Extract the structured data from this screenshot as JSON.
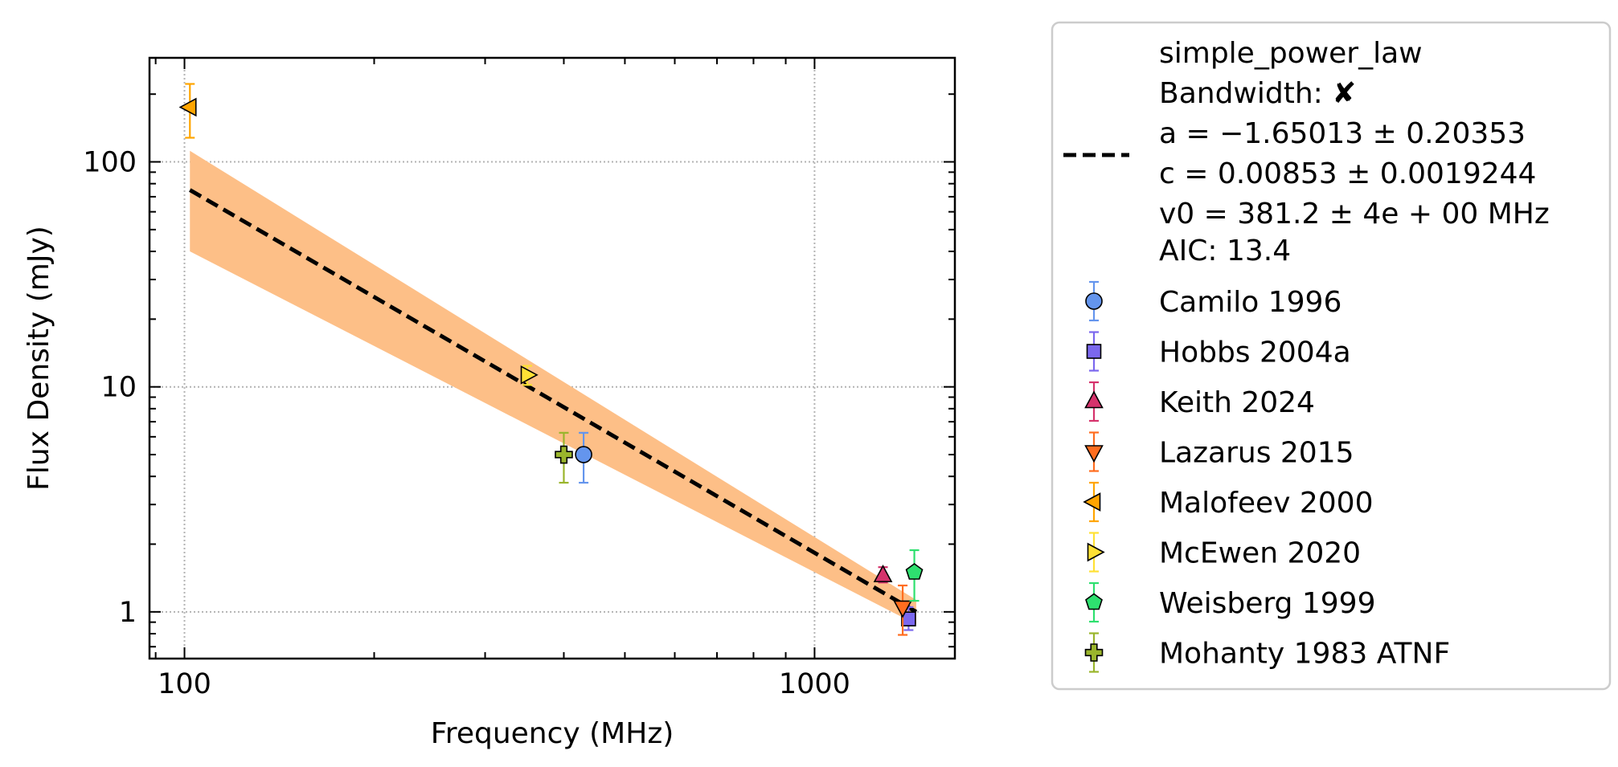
{
  "chart_data": {
    "type": "scatter",
    "xlabel": "Frequency (MHz)",
    "ylabel": "Flux Density (mJy)",
    "x_scale": "log",
    "y_scale": "log",
    "xlim": [
      88,
      1670
    ],
    "ylim": [
      0.62,
      290
    ],
    "grid": true,
    "grid_style": "dotted",
    "legend_placement": "outside-right",
    "x_ticks": [
      {
        "value": 100,
        "label": "100"
      },
      {
        "value": 1000,
        "label": "1000"
      }
    ],
    "y_ticks": [
      {
        "value": 1,
        "label": "1"
      },
      {
        "value": 10,
        "label": "10"
      },
      {
        "value": 100,
        "label": "100"
      }
    ],
    "fit": {
      "model": "simple_power_law",
      "bandwidth_label": "Bandwidth:",
      "bandwidth_symbol": "✘",
      "param_a": "a = −1.65013 ± 0.20353",
      "param_c": "c = 0.00853 ± 0.0019244",
      "param_v0": "v0 = 381.2 ± 4e + 00 MHz",
      "aic": "AIC: 13.4",
      "line_color": "#000000",
      "band_color": "#fdbf87",
      "x": [
        102,
        1450
      ],
      "y": [
        75,
        1.0
      ],
      "band_lower": [
        40,
        0.88
      ],
      "band_upper": [
        112,
        1.13
      ]
    },
    "series": [
      {
        "name": "Camilo 1996",
        "marker": "circle",
        "color": "#6495ed",
        "points": [
          {
            "x": 430,
            "y": 5.0,
            "yerr_low": 3.75,
            "yerr_high": 6.25
          }
        ]
      },
      {
        "name": "Hobbs 2004a",
        "marker": "square",
        "color": "#7b68ee",
        "points": [
          {
            "x": 1410,
            "y": 0.93,
            "yerr_low": 0.83,
            "yerr_high": 1.05
          }
        ]
      },
      {
        "name": "Keith 2024",
        "marker": "triangle-up",
        "color": "#d6336c",
        "points": [
          {
            "x": 1284,
            "y": 1.45,
            "yerr_low": 1.35,
            "yerr_high": 1.58
          }
        ]
      },
      {
        "name": "Lazarus 2015",
        "marker": "triangle-down",
        "color": "#ff6d1f",
        "points": [
          {
            "x": 1380,
            "y": 1.05,
            "yerr_low": 0.79,
            "yerr_high": 1.31
          }
        ]
      },
      {
        "name": "Malofeev 2000",
        "marker": "triangle-left",
        "color": "#ffa500",
        "points": [
          {
            "x": 102,
            "y": 175,
            "yerr_low": 128,
            "yerr_high": 222
          }
        ]
      },
      {
        "name": "McEwen 2020",
        "marker": "triangle-right",
        "color": "#ffe135",
        "points": [
          {
            "x": 350,
            "y": 11.3,
            "yerr_low": 10.2,
            "yerr_high": 12.4
          }
        ]
      },
      {
        "name": "Weisberg 1999",
        "marker": "pentagon",
        "color": "#2ee06f",
        "points": [
          {
            "x": 1440,
            "y": 1.5,
            "yerr_low": 1.12,
            "yerr_high": 1.88
          }
        ]
      },
      {
        "name": "Mohanty 1983 ATNF",
        "marker": "plus",
        "color": "#9ab52c",
        "points": [
          {
            "x": 400,
            "y": 5.0,
            "yerr_low": 3.75,
            "yerr_high": 6.25
          }
        ]
      }
    ]
  }
}
